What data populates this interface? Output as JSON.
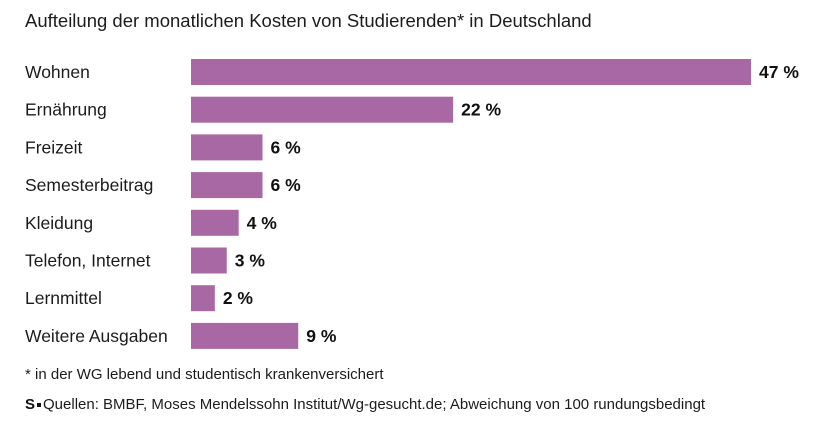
{
  "chart_data": {
    "type": "bar",
    "orientation": "horizontal",
    "title": "Aufteilung der monatlichen Kosten von Studierenden* in Deutschland",
    "categories": [
      "Wohnen",
      "Ernährung",
      "Freizeit",
      "Semesterbeitrag",
      "Kleidung",
      "Telefon, Internet",
      "Lernmittel",
      "Weitere Ausgaben"
    ],
    "values": [
      47,
      22,
      6,
      6,
      4,
      3,
      2,
      9
    ],
    "value_labels": [
      "47 %",
      "22 %",
      "6 %",
      "6 %",
      "4 %",
      "3 %",
      "2 %",
      "9 %"
    ],
    "unit": "%",
    "xlim": [
      0,
      47
    ],
    "bar_color": "#a868a4",
    "grid": false,
    "xlabel": "",
    "ylabel": ""
  },
  "footnote": "* in der WG lebend und studentisch krankenversichert",
  "source": {
    "logo_text": "S",
    "text": "Quellen: BMBF, Moses Mendelssohn Institut/Wg-gesucht.de; Abweichung von 100 rundungsbedingt"
  }
}
